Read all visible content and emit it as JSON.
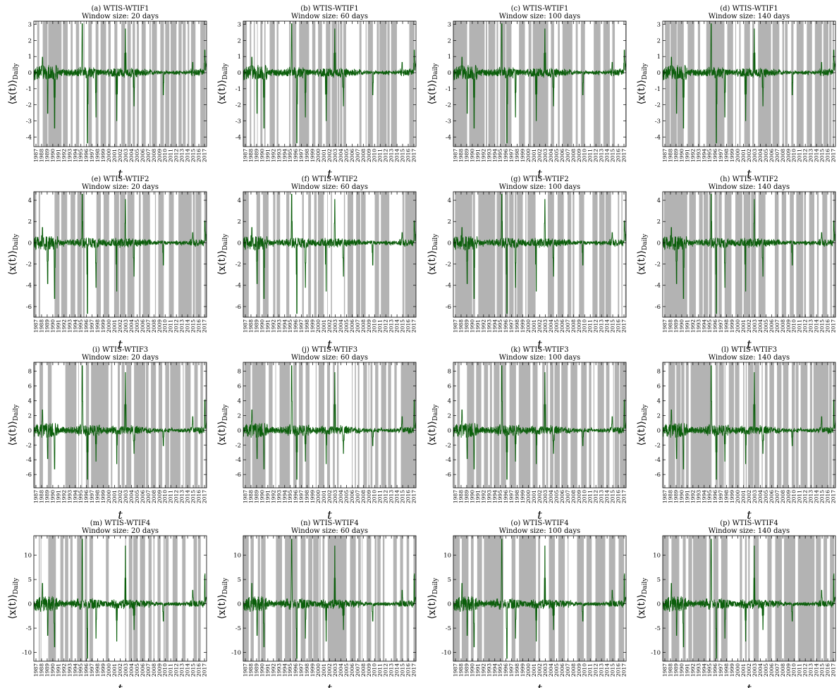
{
  "figure": {
    "x_label": "t",
    "y_label_main": "⟨x(t)⟩",
    "y_label_sub": "Daily",
    "x_ticks": [
      "1987",
      "1988",
      "1989",
      "1990",
      "1991",
      "1992",
      "1993",
      "1994",
      "1995",
      "1996",
      "1997",
      "1998",
      "1999",
      "2000",
      "2001",
      "2002",
      "2003",
      "2004",
      "2005",
      "2006",
      "2007",
      "2008",
      "2009",
      "2010",
      "2011",
      "2012",
      "2013",
      "2014",
      "2015",
      "2016",
      "2017"
    ],
    "colors": {
      "series": "#0b5e0b",
      "shade": "#b3b3b3",
      "axis": "#000000"
    }
  },
  "chart_data": [
    {
      "type": "line",
      "label": "(a) WTIS-WTIF1",
      "window": "Window size: 20 days",
      "seed": 1,
      "ylim": [
        -4.6,
        3.2
      ],
      "yticks": [
        -4,
        -3,
        -2,
        -1,
        0,
        1,
        2,
        3
      ],
      "spike_max": 3.2,
      "spike_min": -4.6,
      "shade_density": 0.55,
      "shade_seed": 11
    },
    {
      "type": "line",
      "label": "(b) WTIS-WTIF1",
      "window": "Window size: 60 days",
      "seed": 1,
      "ylim": [
        -4.6,
        3.2
      ],
      "yticks": [
        -4,
        -3,
        -2,
        -1,
        0,
        1,
        2,
        3
      ],
      "spike_max": 3.2,
      "spike_min": -4.6,
      "shade_density": 0.62,
      "shade_seed": 12
    },
    {
      "type": "line",
      "label": "(c) WTIS-WTIF1",
      "window": "Window size: 100 days",
      "seed": 1,
      "ylim": [
        -4.6,
        3.2
      ],
      "yticks": [
        -4,
        -3,
        -2,
        -1,
        0,
        1,
        2,
        3
      ],
      "spike_max": 3.2,
      "spike_min": -4.6,
      "shade_density": 0.7,
      "shade_seed": 13
    },
    {
      "type": "line",
      "label": "(d) WTIS-WTIF1",
      "window": "Window size: 140 days",
      "seed": 1,
      "ylim": [
        -4.6,
        3.2
      ],
      "yticks": [
        -4,
        -3,
        -2,
        -1,
        0,
        1,
        2,
        3
      ],
      "spike_max": 3.2,
      "spike_min": -4.6,
      "shade_density": 0.72,
      "shade_seed": 14
    },
    {
      "type": "line",
      "label": "(e) WTIS-WTIF2",
      "window": "Window size: 20 days",
      "seed": 2,
      "ylim": [
        -7,
        4.8
      ],
      "yticks": [
        -6,
        -4,
        -2,
        0,
        2,
        4
      ],
      "spike_max": 4.8,
      "spike_min": -7,
      "shade_density": 0.55,
      "shade_seed": 21
    },
    {
      "type": "line",
      "label": "(f) WTIS-WTIF2",
      "window": "Window size: 60 days",
      "seed": 2,
      "ylim": [
        -7,
        4.8
      ],
      "yticks": [
        -6,
        -4,
        -2,
        0,
        2,
        4
      ],
      "spike_max": 4.8,
      "spike_min": -7,
      "shade_density": 0.62,
      "shade_seed": 22
    },
    {
      "type": "line",
      "label": "(g) WTIS-WTIF2",
      "window": "Window size: 100 days",
      "seed": 2,
      "ylim": [
        -7,
        4.8
      ],
      "yticks": [
        -6,
        -4,
        -2,
        0,
        2,
        4
      ],
      "spike_max": 4.8,
      "spike_min": -7,
      "shade_density": 0.7,
      "shade_seed": 23
    },
    {
      "type": "line",
      "label": "(h) WTIS-WTIF2",
      "window": "Window size: 140 days",
      "seed": 2,
      "ylim": [
        -7,
        4.8
      ],
      "yticks": [
        -6,
        -4,
        -2,
        0,
        2,
        4
      ],
      "spike_max": 4.8,
      "spike_min": -7,
      "shade_density": 0.72,
      "shade_seed": 24
    },
    {
      "type": "line",
      "label": "(i) WTIS-WTIF3",
      "window": "Window size: 20 days",
      "seed": 3,
      "ylim": [
        -7.8,
        9.2
      ],
      "yticks": [
        -6,
        -4,
        -2,
        0,
        2,
        4,
        6,
        8
      ],
      "spike_max": 9.2,
      "spike_min": -7,
      "shade_density": 0.55,
      "shade_seed": 31
    },
    {
      "type": "line",
      "label": "(j) WTIS-WTIF3",
      "window": "Window size: 60 days",
      "seed": 3,
      "ylim": [
        -7.8,
        9.2
      ],
      "yticks": [
        -6,
        -4,
        -2,
        0,
        2,
        4,
        6,
        8
      ],
      "spike_max": 9.2,
      "spike_min": -7,
      "shade_density": 0.62,
      "shade_seed": 32
    },
    {
      "type": "line",
      "label": "(k) WTIS-WTIF3",
      "window": "Window size: 100 days",
      "seed": 3,
      "ylim": [
        -7.8,
        9.2
      ],
      "yticks": [
        -6,
        -4,
        -2,
        0,
        2,
        4,
        6,
        8
      ],
      "spike_max": 9.2,
      "spike_min": -7,
      "shade_density": 0.7,
      "shade_seed": 33
    },
    {
      "type": "line",
      "label": "(l) WTIS-WTIF3",
      "window": "Window size: 140 days",
      "seed": 3,
      "ylim": [
        -7.8,
        9.2
      ],
      "yticks": [
        -6,
        -4,
        -2,
        0,
        2,
        4,
        6,
        8
      ],
      "spike_max": 9.2,
      "spike_min": -7,
      "shade_density": 0.72,
      "shade_seed": 34
    },
    {
      "type": "line",
      "label": "(m) WTIS-WTIF4",
      "window": "Window size: 20 days",
      "seed": 4,
      "ylim": [
        -11.8,
        14
      ],
      "yticks": [
        -10,
        -5,
        0,
        5,
        10
      ],
      "spike_max": 14,
      "spike_min": -11.8,
      "shade_density": 0.55,
      "shade_seed": 41
    },
    {
      "type": "line",
      "label": "(n) WTIS-WTIF4",
      "window": "Window size: 60 days",
      "seed": 4,
      "ylim": [
        -11.8,
        14
      ],
      "yticks": [
        -10,
        -5,
        0,
        5,
        10
      ],
      "spike_max": 14,
      "spike_min": -11.8,
      "shade_density": 0.62,
      "shade_seed": 42
    },
    {
      "type": "line",
      "label": "(o) WTIS-WTIF4",
      "window": "Window size: 100 days",
      "seed": 4,
      "ylim": [
        -11.8,
        14
      ],
      "yticks": [
        -10,
        -5,
        0,
        5,
        10
      ],
      "spike_max": 14,
      "spike_min": -11.8,
      "shade_density": 0.7,
      "shade_seed": 43
    },
    {
      "type": "line",
      "label": "(p) WTIS-WTIF4",
      "window": "Window size: 140 days",
      "seed": 4,
      "ylim": [
        -11.8,
        14
      ],
      "yticks": [
        -10,
        -5,
        0,
        5,
        10
      ],
      "spike_max": 14,
      "spike_min": -11.8,
      "shade_density": 0.72,
      "shade_seed": 44
    }
  ]
}
